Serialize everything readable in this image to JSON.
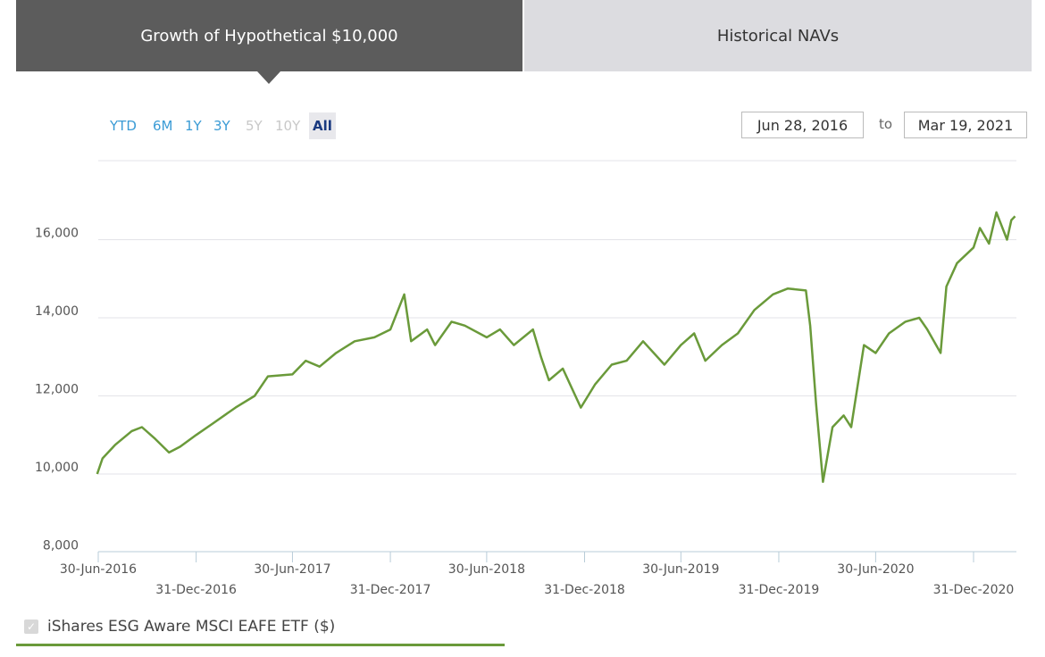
{
  "tabs": [
    {
      "label": "Growth of Hypothetical $10,000",
      "active": true
    },
    {
      "label": "Historical NAVs",
      "active": false
    }
  ],
  "ranges": [
    {
      "label": "YTD",
      "state": "enabled"
    },
    {
      "label": "6M",
      "state": "enabled"
    },
    {
      "label": "1Y",
      "state": "enabled"
    },
    {
      "label": "3Y",
      "state": "enabled"
    },
    {
      "label": "5Y",
      "state": "disabled"
    },
    {
      "label": "10Y",
      "state": "disabled"
    },
    {
      "label": "All",
      "state": "active"
    }
  ],
  "date_from": "Jun 28, 2016",
  "date_to_label": "to",
  "date_to": "Mar 19, 2021",
  "legend": {
    "label": "iShares ESG Aware MSCI EAFE ETF ($)",
    "checked": true,
    "color": "#6a9a3a"
  },
  "chart_data": {
    "type": "line",
    "ylim": [
      8000,
      18000
    ],
    "yticks": [
      8000,
      10000,
      12000,
      14000,
      16000
    ],
    "ytick_labels": [
      "8,000",
      "10,000",
      "12,000",
      "14,000",
      "16,000"
    ],
    "xlim": [
      "2016-06-28",
      "2021-03-19"
    ],
    "xtick_labels": [
      "30-Jun-2016",
      "31-Dec-2016",
      "30-Jun-2017",
      "31-Dec-2017",
      "30-Jun-2018",
      "31-Dec-2018",
      "30-Jun-2019",
      "31-Dec-2019",
      "30-Jun-2020",
      "31-Dec-2020"
    ],
    "xticks": [
      "2016-06-30",
      "2016-12-31",
      "2017-06-30",
      "2017-12-31",
      "2018-06-30",
      "2018-12-31",
      "2019-06-30",
      "2019-12-31",
      "2020-06-30",
      "2020-12-31"
    ],
    "grid": true,
    "series": [
      {
        "name": "iShares ESG Aware MSCI EAFE ETF ($)",
        "color": "#6a9a3a",
        "points": [
          [
            "2016-06-28",
            10000
          ],
          [
            "2016-07-08",
            10400
          ],
          [
            "2016-08-01",
            10750
          ],
          [
            "2016-09-01",
            11100
          ],
          [
            "2016-09-20",
            11200
          ],
          [
            "2016-10-15",
            10900
          ],
          [
            "2016-11-10",
            10550
          ],
          [
            "2016-12-01",
            10700
          ],
          [
            "2016-12-31",
            11000
          ],
          [
            "2017-02-01",
            11300
          ],
          [
            "2017-03-15",
            11700
          ],
          [
            "2017-04-20",
            12000
          ],
          [
            "2017-05-15",
            12500
          ],
          [
            "2017-06-30",
            12550
          ],
          [
            "2017-07-25",
            12900
          ],
          [
            "2017-08-20",
            12750
          ],
          [
            "2017-09-20",
            13100
          ],
          [
            "2017-10-25",
            13400
          ],
          [
            "2017-12-01",
            13500
          ],
          [
            "2017-12-31",
            13700
          ],
          [
            "2018-01-26",
            14600
          ],
          [
            "2018-02-08",
            13400
          ],
          [
            "2018-03-10",
            13700
          ],
          [
            "2018-03-25",
            13300
          ],
          [
            "2018-04-25",
            13900
          ],
          [
            "2018-05-20",
            13800
          ],
          [
            "2018-06-30",
            13500
          ],
          [
            "2018-07-25",
            13700
          ],
          [
            "2018-08-20",
            13300
          ],
          [
            "2018-09-25",
            13700
          ],
          [
            "2018-10-10",
            13000
          ],
          [
            "2018-10-25",
            12400
          ],
          [
            "2018-11-20",
            12700
          ],
          [
            "2018-12-24",
            11700
          ],
          [
            "2019-01-20",
            12300
          ],
          [
            "2019-02-20",
            12800
          ],
          [
            "2019-03-20",
            12900
          ],
          [
            "2019-04-20",
            13400
          ],
          [
            "2019-05-30",
            12800
          ],
          [
            "2019-06-30",
            13300
          ],
          [
            "2019-07-25",
            13600
          ],
          [
            "2019-08-15",
            12900
          ],
          [
            "2019-09-15",
            13300
          ],
          [
            "2019-10-15",
            13600
          ],
          [
            "2019-11-15",
            14200
          ],
          [
            "2019-12-20",
            14600
          ],
          [
            "2020-01-17",
            14750
          ],
          [
            "2020-02-20",
            14700
          ],
          [
            "2020-02-28",
            13800
          ],
          [
            "2020-03-10",
            11800
          ],
          [
            "2020-03-23",
            9800
          ],
          [
            "2020-04-10",
            11200
          ],
          [
            "2020-05-01",
            11500
          ],
          [
            "2020-05-15",
            11200
          ],
          [
            "2020-06-08",
            13300
          ],
          [
            "2020-06-30",
            13100
          ],
          [
            "2020-07-25",
            13600
          ],
          [
            "2020-08-25",
            13900
          ],
          [
            "2020-09-20",
            14000
          ],
          [
            "2020-10-05",
            13700
          ],
          [
            "2020-10-30",
            13100
          ],
          [
            "2020-11-10",
            14800
          ],
          [
            "2020-11-30",
            15400
          ],
          [
            "2020-12-31",
            15800
          ],
          [
            "2021-01-12",
            16300
          ],
          [
            "2021-01-29",
            15900
          ],
          [
            "2021-02-12",
            16700
          ],
          [
            "2021-03-04",
            16000
          ],
          [
            "2021-03-12",
            16500
          ],
          [
            "2021-03-19",
            16600
          ]
        ]
      }
    ]
  }
}
